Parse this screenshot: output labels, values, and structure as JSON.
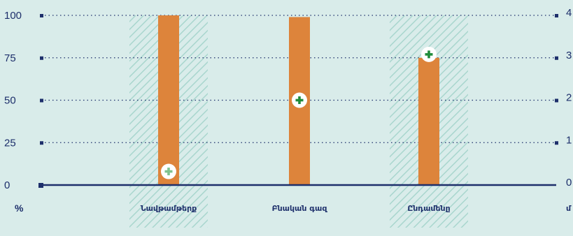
{
  "colors": {
    "background": "#d9ecea",
    "bar": "#dd843b",
    "axis": "#1d2f6b",
    "grid": "#1d2f6b",
    "hatch": "#a9d6ce",
    "marker_strong": "#1f8c3b",
    "marker_faded": "#7fc38f",
    "marker_fill": "#ffffff"
  },
  "chart_data": {
    "type": "bar",
    "title": "",
    "categories": [
      "Նավթամթերք",
      "Բնական գազ",
      "Ընդամենը"
    ],
    "values": [
      100,
      99,
      75
    ],
    "y_left": {
      "unit_label": "%",
      "ticks": [
        0,
        25,
        50,
        75,
        100
      ],
      "range": [
        0,
        100
      ]
    },
    "y_right": {
      "unit_label": "մ",
      "ticks": [
        "0",
        "1",
        "2",
        "3",
        "4"
      ],
      "range": [
        0,
        4
      ]
    },
    "markers": [
      {
        "category": "Նավթամթերք",
        "value": 8,
        "style": "faded"
      },
      {
        "category": "Բնական գազ",
        "value": 50,
        "style": "strong"
      },
      {
        "category": "Ընդամենը",
        "value": 77,
        "style": "strong"
      }
    ],
    "hatched_categories": [
      "Նավթամթերք",
      "Ընդամենը"
    ],
    "grid": true,
    "legend": "none"
  }
}
